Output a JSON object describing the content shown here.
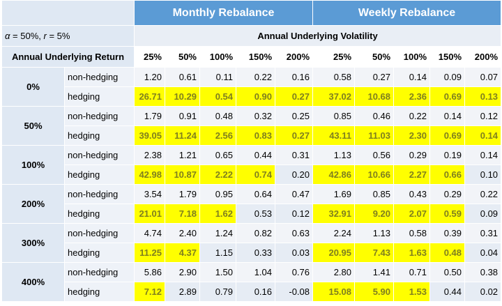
{
  "header": {
    "monthly": "Monthly Rebalance",
    "weekly": "Weekly Rebalance",
    "params": "α = 50%, r = 5%",
    "vol_title": "Annual Underlying Volatility",
    "return_title": "Annual Underlying Return",
    "vols": [
      "25%",
      "50%",
      "100%",
      "150%",
      "200%",
      "25%",
      "50%",
      "100%",
      "150%",
      "200%"
    ]
  },
  "highlight_color": "#ffff00",
  "groups": [
    {
      "label": "0%",
      "rows": [
        {
          "type": "non-hedging",
          "values": [
            "1.20",
            "0.61",
            "0.11",
            "0.22",
            "0.16",
            "0.58",
            "0.27",
            "0.14",
            "0.09",
            "0.07"
          ],
          "hl": [
            false,
            false,
            false,
            false,
            false,
            false,
            false,
            false,
            false,
            false
          ]
        },
        {
          "type": "hedging",
          "values": [
            "26.71",
            "10.29",
            "0.54",
            "0.90",
            "0.27",
            "37.02",
            "10.68",
            "2.36",
            "0.69",
            "0.13"
          ],
          "hl": [
            true,
            true,
            true,
            true,
            true,
            true,
            true,
            true,
            true,
            true
          ]
        }
      ]
    },
    {
      "label": "50%",
      "rows": [
        {
          "type": "non-hedging",
          "values": [
            "1.79",
            "0.91",
            "0.48",
            "0.32",
            "0.25",
            "0.85",
            "0.46",
            "0.22",
            "0.14",
            "0.12"
          ],
          "hl": [
            false,
            false,
            false,
            false,
            false,
            false,
            false,
            false,
            false,
            false
          ]
        },
        {
          "type": "hedging",
          "values": [
            "39.05",
            "11.24",
            "2.56",
            "0.83",
            "0.27",
            "43.11",
            "11.03",
            "2.30",
            "0.69",
            "0.14"
          ],
          "hl": [
            true,
            true,
            true,
            true,
            true,
            true,
            true,
            true,
            true,
            true
          ]
        }
      ]
    },
    {
      "label": "100%",
      "rows": [
        {
          "type": "non-hedging",
          "values": [
            "2.38",
            "1.21",
            "0.65",
            "0.44",
            "0.31",
            "1.13",
            "0.56",
            "0.29",
            "0.19",
            "0.14"
          ],
          "hl": [
            false,
            false,
            false,
            false,
            false,
            false,
            false,
            false,
            false,
            false
          ]
        },
        {
          "type": "hedging",
          "values": [
            "42.98",
            "10.87",
            "2.22",
            "0.74",
            "0.20",
            "42.86",
            "10.66",
            "2.27",
            "0.66",
            "0.10"
          ],
          "hl": [
            true,
            true,
            true,
            true,
            false,
            true,
            true,
            true,
            true,
            false
          ]
        }
      ]
    },
    {
      "label": "200%",
      "rows": [
        {
          "type": "non-hedging",
          "values": [
            "3.54",
            "1.79",
            "0.95",
            "0.64",
            "0.47",
            "1.69",
            "0.85",
            "0.43",
            "0.29",
            "0.22"
          ],
          "hl": [
            false,
            false,
            false,
            false,
            false,
            false,
            false,
            false,
            false,
            false
          ]
        },
        {
          "type": "hedging",
          "values": [
            "21.01",
            "7.18",
            "1.62",
            "0.53",
            "0.12",
            "32.91",
            "9.20",
            "2.07",
            "0.59",
            "0.09"
          ],
          "hl": [
            true,
            true,
            true,
            false,
            false,
            true,
            true,
            true,
            true,
            false
          ]
        }
      ]
    },
    {
      "label": "300%",
      "rows": [
        {
          "type": "non-hedging",
          "values": [
            "4.74",
            "2.40",
            "1.24",
            "0.82",
            "0.63",
            "2.24",
            "1.13",
            "0.58",
            "0.39",
            "0.31"
          ],
          "hl": [
            false,
            false,
            false,
            false,
            false,
            false,
            false,
            false,
            false,
            false
          ]
        },
        {
          "type": "hedging",
          "values": [
            "11.25",
            "4.37",
            "1.15",
            "0.33",
            "0.03",
            "20.95",
            "7.43",
            "1.63",
            "0.48",
            "0.04"
          ],
          "hl": [
            true,
            true,
            false,
            false,
            false,
            true,
            true,
            true,
            true,
            false
          ]
        }
      ]
    },
    {
      "label": "400%",
      "rows": [
        {
          "type": "non-hedging",
          "values": [
            "5.86",
            "2.90",
            "1.50",
            "1.04",
            "0.76",
            "2.80",
            "1.41",
            "0.71",
            "0.50",
            "0.38"
          ],
          "hl": [
            false,
            false,
            false,
            false,
            false,
            false,
            false,
            false,
            false,
            false
          ]
        },
        {
          "type": "hedging",
          "values": [
            "7.12",
            "2.89",
            "0.79",
            "0.16",
            "-0.08",
            "15.08",
            "5.90",
            "1.53",
            "0.44",
            "0.02"
          ],
          "hl": [
            true,
            false,
            false,
            false,
            false,
            true,
            true,
            true,
            false,
            false
          ]
        }
      ]
    }
  ]
}
